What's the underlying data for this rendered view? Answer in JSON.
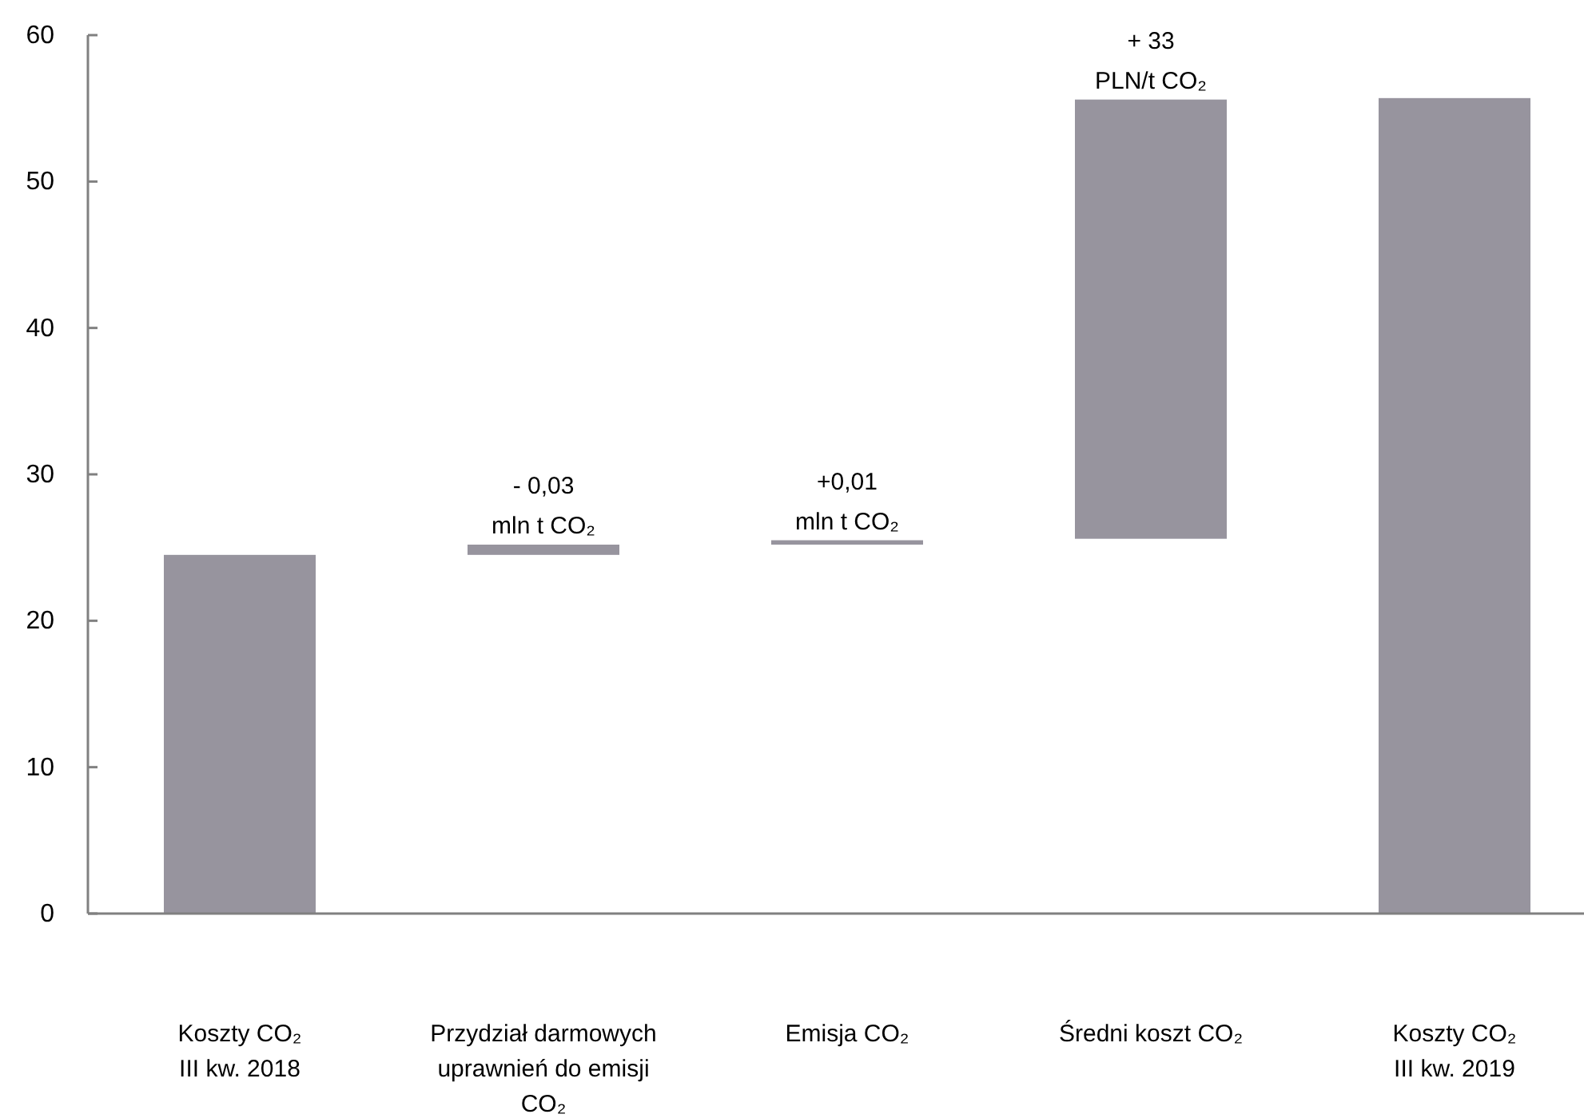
{
  "chart_data": {
    "type": "bar",
    "categories": [
      "Koszty CO₂\nIII kw. 2018",
      "Przydział darmowych\nuprawnień do emisji\nCO₂",
      "Emisja CO₂",
      "Średni koszt CO₂",
      "Koszty CO₂\nIII kw. 2019"
    ],
    "values": [
      24.5,
      -0.7,
      0.3,
      30.0,
      55.7
    ],
    "base": [
      0,
      25.2,
      25.2,
      25.6,
      0
    ],
    "color": "#97949e",
    "ylim": [
      0,
      60
    ],
    "yticks": [
      0,
      10,
      20,
      30,
      40,
      50,
      60
    ],
    "grid": false,
    "annotations": [
      {
        "text": "- 0,03\nmln t CO₂",
        "x": "Przydział darmowych\nuprawnień do emisji\nCO₂",
        "y": 25.2
      },
      {
        "text": "+0,01\nmln t CO₂",
        "x": "Emisja CO₂",
        "y": 25.5
      },
      {
        "text": "+ 33\nPLN/t CO₂",
        "x": "Średni koszt CO₂",
        "y": 55.6
      }
    ]
  }
}
